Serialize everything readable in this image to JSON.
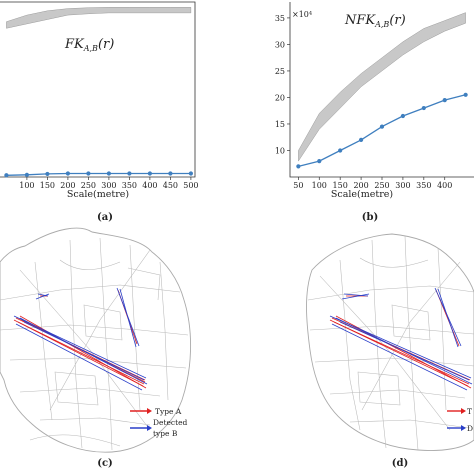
{
  "chart_data": [
    {
      "panel": "(a)",
      "type": "line",
      "annotation": "FK_{A,B}(r)",
      "xlabel": "Scale(metre)",
      "x": [
        50,
        100,
        150,
        200,
        250,
        300,
        350,
        400,
        450,
        500
      ],
      "xticks": [
        "100",
        "150",
        "200",
        "250",
        "300",
        "350",
        "400",
        "450",
        "500"
      ],
      "series": [
        {
          "values": [
            0.4,
            0.5,
            0.7,
            0.8,
            0.8,
            0.8,
            0.8,
            0.8,
            0.8,
            0.8
          ],
          "color": "#3f7fbf"
        }
      ],
      "envelope": {
        "lower": [
          34,
          35,
          36,
          37,
          37.3,
          37.5,
          37.5,
          37.5,
          37.5,
          37.5
        ],
        "upper": [
          35.5,
          37,
          38,
          38.5,
          38.7,
          38.8,
          38.8,
          38.8,
          38.8,
          38.8
        ],
        "color": "#c8c8c8"
      },
      "xlim": [
        10,
        510
      ],
      "ylim": [
        0,
        40
      ]
    },
    {
      "panel": "(b)",
      "type": "line",
      "annotation": "NFK_{A,B}(r)",
      "scale_label": "×10⁴",
      "xlabel": "Scale(metre)",
      "x": [
        50,
        100,
        150,
        200,
        250,
        300,
        350,
        400,
        450
      ],
      "xticks": [
        "50",
        "100",
        "150",
        "200",
        "250",
        "300",
        "350",
        "400"
      ],
      "yticks": [
        "10",
        "15",
        "20",
        "25",
        "30",
        "35"
      ],
      "series": [
        {
          "values": [
            7,
            8,
            10,
            12,
            14.5,
            16.5,
            18,
            19.5,
            20.5
          ],
          "color": "#3f7fbf"
        }
      ],
      "envelope": {
        "lower": [
          8,
          14,
          18,
          22,
          25,
          28,
          30.5,
          32.5,
          34
        ],
        "upper": [
          10,
          17,
          21,
          24.5,
          27.5,
          30.5,
          33,
          34.5,
          36
        ],
        "color": "#c8c8c8"
      },
      "xlim": [
        30,
        470
      ],
      "ylim": [
        5,
        38
      ]
    }
  ],
  "labels": {
    "a": "(a)",
    "b": "(b)",
    "c": "(c)",
    "d": "(d)",
    "c_legend_a": "Type A",
    "c_legend_b1": "Detected",
    "c_legend_b2": "type B",
    "d_legend_a": "T",
    "d_legend_b": "D"
  },
  "colors": {
    "type_a": "#e02020",
    "type_b": "#2a3fc9",
    "road": "#b9b9b9"
  }
}
